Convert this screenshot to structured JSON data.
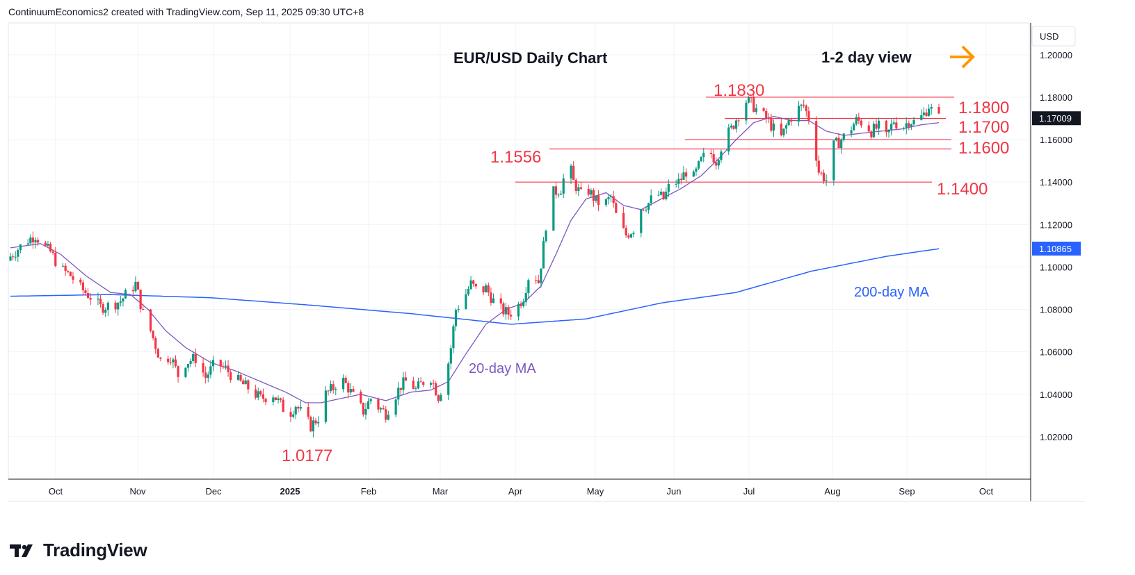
{
  "header": {
    "credit": "ContinuumEconomics2 created with TradingView.com, Sep 11, 2025 09:30 UTC+8"
  },
  "brand": {
    "name": "TradingView",
    "icon": "tradingview-logo-icon"
  },
  "colors": {
    "up": "#089981",
    "down": "#f23645",
    "ma20": "#7e57c2",
    "ma200": "#2962ff",
    "level_line": "#f23645",
    "level_text": "#f23645",
    "arrow": "#ff9800",
    "price_badge": "#131722",
    "ma200_badge": "#2962ff"
  },
  "chart_data": {
    "type": "candlestick",
    "title": "EUR/USD Daily Chart",
    "annotation_view": "1-2 day view",
    "currency_label": "USD",
    "y_axis": {
      "range": [
        1.0,
        1.215
      ],
      "ticks": [
        "1.02000",
        "1.04000",
        "1.06000",
        "1.08000",
        "1.10000",
        "1.12000",
        "1.14000",
        "1.16000",
        "1.18000",
        "1.20000"
      ]
    },
    "x_axis": {
      "labels": [
        "Oct",
        "Nov",
        "Dec",
        "2025",
        "Feb",
        "Mar",
        "Apr",
        "May",
        "Jun",
        "Jul",
        "Aug",
        "Sep",
        "Oct"
      ],
      "bold": [
        "2025"
      ]
    },
    "current_price": "1.17009",
    "ma200_value": "1.10865",
    "levels": [
      {
        "label": "1.1800",
        "value": 1.18
      },
      {
        "label": "1.1700",
        "value": 1.17
      },
      {
        "label": "1.1600",
        "value": 1.16
      },
      {
        "label": "1.1556",
        "value": 1.1556
      },
      {
        "label": "1.1400",
        "value": 1.14
      }
    ],
    "extremes": [
      {
        "label": "1.1830",
        "value": 1.183
      },
      {
        "label": "1.0177",
        "value": 1.0177
      }
    ],
    "ma_labels": [
      "20-day MA",
      "200-day MA"
    ],
    "series_close": [
      [
        0,
        1.105
      ],
      [
        6,
        1.112
      ],
      [
        10,
        1.115
      ],
      [
        13,
        1.11
      ],
      [
        16,
        1.107
      ],
      [
        20,
        1.099
      ],
      [
        24,
        1.096
      ],
      [
        28,
        1.09
      ],
      [
        32,
        1.086
      ],
      [
        36,
        1.081
      ],
      [
        40,
        1.082
      ],
      [
        44,
        1.084
      ],
      [
        47,
        1.088
      ],
      [
        50,
        1.092
      ],
      [
        53,
        1.078
      ],
      [
        56,
        1.07
      ],
      [
        60,
        1.056
      ],
      [
        64,
        1.058
      ],
      [
        67,
        1.049
      ],
      [
        70,
        1.055
      ],
      [
        74,
        1.057
      ],
      [
        78,
        1.048
      ],
      [
        82,
        1.055
      ],
      [
        86,
        1.052
      ],
      [
        90,
        1.047
      ],
      [
        95,
        1.043
      ],
      [
        100,
        1.038
      ],
      [
        105,
        1.04
      ],
      [
        108,
        1.035
      ],
      [
        111,
        1.03
      ],
      [
        114,
        1.035
      ],
      [
        117,
        1.03
      ],
      [
        120,
        1.025
      ],
      [
        123,
        1.029
      ],
      [
        126,
        1.04
      ],
      [
        129,
        1.043
      ],
      [
        132,
        1.048
      ],
      [
        135,
        1.043
      ],
      [
        138,
        1.037
      ],
      [
        141,
        1.032
      ],
      [
        144,
        1.038
      ],
      [
        147,
        1.034
      ],
      [
        150,
        1.031
      ],
      [
        153,
        1.038
      ],
      [
        156,
        1.044
      ],
      [
        159,
        1.047
      ],
      [
        162,
        1.042
      ],
      [
        165,
        1.046
      ],
      [
        168,
        1.048
      ],
      [
        171,
        1.039
      ],
      [
        174,
        1.048
      ],
      [
        176,
        1.062
      ],
      [
        178,
        1.08
      ],
      [
        181,
        1.085
      ],
      [
        184,
        1.092
      ],
      [
        187,
        1.088
      ],
      [
        190,
        1.09
      ],
      [
        193,
        1.084
      ],
      [
        196,
        1.08
      ],
      [
        199,
        1.078
      ],
      [
        202,
        1.08
      ],
      [
        205,
        1.086
      ],
      [
        208,
        1.1
      ],
      [
        211,
        1.093
      ],
      [
        213,
        1.11
      ],
      [
        215,
        1.13
      ],
      [
        217,
        1.135
      ],
      [
        220,
        1.137
      ],
      [
        223,
        1.15
      ],
      [
        225,
        1.14
      ],
      [
        228,
        1.134
      ],
      [
        231,
        1.136
      ],
      [
        234,
        1.131
      ],
      [
        237,
        1.129
      ],
      [
        240,
        1.133
      ],
      [
        243,
        1.12
      ],
      [
        246,
        1.115
      ],
      [
        249,
        1.118
      ],
      [
        252,
        1.128
      ],
      [
        255,
        1.13
      ],
      [
        258,
        1.135
      ],
      [
        261,
        1.132
      ],
      [
        264,
        1.14
      ],
      [
        267,
        1.14
      ],
      [
        270,
        1.145
      ],
      [
        273,
        1.142
      ],
      [
        276,
        1.15
      ],
      [
        279,
        1.155
      ],
      [
        282,
        1.15
      ],
      [
        285,
        1.16
      ],
      [
        288,
        1.165
      ],
      [
        291,
        1.172
      ],
      [
        293,
        1.179
      ],
      [
        296,
        1.177
      ],
      [
        299,
        1.173
      ],
      [
        302,
        1.17
      ],
      [
        305,
        1.165
      ],
      [
        308,
        1.161
      ],
      [
        311,
        1.169
      ],
      [
        314,
        1.174
      ],
      [
        317,
        1.176
      ],
      [
        319,
        1.17
      ],
      [
        321,
        1.16
      ],
      [
        323,
        1.145
      ],
      [
        326,
        1.141
      ],
      [
        329,
        1.157
      ],
      [
        332,
        1.16
      ],
      [
        335,
        1.164
      ],
      [
        338,
        1.169
      ],
      [
        341,
        1.168
      ],
      [
        344,
        1.164
      ],
      [
        347,
        1.166
      ],
      [
        350,
        1.161
      ],
      [
        353,
        1.169
      ],
      [
        356,
        1.165
      ],
      [
        359,
        1.169
      ],
      [
        362,
        1.168
      ],
      [
        365,
        1.172
      ],
      [
        367,
        1.176
      ],
      [
        369,
        1.172
      ],
      [
        371,
        1.17
      ]
    ],
    "series_ma20": [
      [
        0,
        1.109
      ],
      [
        12,
        1.111
      ],
      [
        20,
        1.106
      ],
      [
        30,
        1.096
      ],
      [
        40,
        1.088
      ],
      [
        48,
        1.087
      ],
      [
        55,
        1.08
      ],
      [
        62,
        1.07
      ],
      [
        70,
        1.062
      ],
      [
        80,
        1.055
      ],
      [
        90,
        1.051
      ],
      [
        100,
        1.046
      ],
      [
        110,
        1.041
      ],
      [
        118,
        1.036
      ],
      [
        124,
        1.036
      ],
      [
        132,
        1.038
      ],
      [
        140,
        1.04
      ],
      [
        150,
        1.037
      ],
      [
        160,
        1.041
      ],
      [
        168,
        1.042
      ],
      [
        175,
        1.046
      ],
      [
        182,
        1.059
      ],
      [
        190,
        1.073
      ],
      [
        198,
        1.08
      ],
      [
        205,
        1.083
      ],
      [
        212,
        1.091
      ],
      [
        218,
        1.106
      ],
      [
        224,
        1.122
      ],
      [
        230,
        1.132
      ],
      [
        238,
        1.135
      ],
      [
        245,
        1.129
      ],
      [
        252,
        1.127
      ],
      [
        260,
        1.132
      ],
      [
        268,
        1.137
      ],
      [
        276,
        1.143
      ],
      [
        283,
        1.151
      ],
      [
        290,
        1.16
      ],
      [
        297,
        1.168
      ],
      [
        305,
        1.171
      ],
      [
        312,
        1.169
      ],
      [
        319,
        1.169
      ],
      [
        326,
        1.164
      ],
      [
        333,
        1.162
      ],
      [
        340,
        1.163
      ],
      [
        348,
        1.164
      ],
      [
        356,
        1.165
      ],
      [
        364,
        1.167
      ],
      [
        371,
        1.168
      ]
    ],
    "series_ma200": [
      [
        0,
        1.0862
      ],
      [
        40,
        1.087
      ],
      [
        80,
        1.0855
      ],
      [
        120,
        1.082
      ],
      [
        160,
        1.078
      ],
      [
        200,
        1.073
      ],
      [
        230,
        1.0755
      ],
      [
        260,
        1.083
      ],
      [
        290,
        1.088
      ],
      [
        320,
        1.098
      ],
      [
        350,
        1.105
      ],
      [
        371,
        1.1086
      ]
    ]
  }
}
